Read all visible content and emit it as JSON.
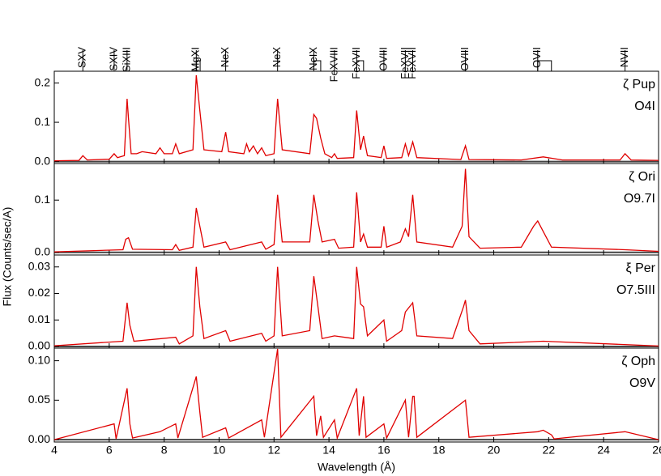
{
  "line_ids": [
    {
      "label": "SXV",
      "wavelength": 5.04
    },
    {
      "label": "SXIV",
      "wavelength": 6.18
    },
    {
      "label": "SiXIII",
      "wavelength": 6.65
    },
    {
      "label": "MgXI",
      "wavelength": 9.17,
      "range": [
        9.17,
        9.31
      ]
    },
    {
      "label": "NeX",
      "wavelength": 10.24
    },
    {
      "label": "NeX",
      "wavelength": 12.13
    },
    {
      "label": "NeIX",
      "wavelength": 13.45,
      "range": [
        13.45,
        13.7
      ]
    },
    {
      "label": "FeXVIII",
      "wavelength": 14.2
    },
    {
      "label": "FeXVII",
      "wavelength": 15.01,
      "range": [
        15.01,
        15.26
      ]
    },
    {
      "label": "OVIII",
      "wavelength": 16.0
    },
    {
      "label": "FeXVII",
      "wavelength": 16.78
    },
    {
      "label": "FeXVII",
      "wavelength": 17.05
    },
    {
      "label": "OVIII",
      "wavelength": 18.97
    },
    {
      "label": "OVII",
      "wavelength": 21.6,
      "range": [
        21.6,
        22.1
      ]
    },
    {
      "label": "NVII",
      "wavelength": 24.78
    }
  ],
  "chart_data": [
    {
      "type": "line",
      "ylabel": "Flux (Counts/sec/A)",
      "spectral_type": "O4I",
      "x": [
        4.0,
        4.9,
        5.04,
        5.2,
        6.0,
        6.18,
        6.3,
        6.55,
        6.65,
        6.7,
        6.8,
        7.0,
        7.2,
        7.7,
        7.85,
        8.0,
        8.3,
        8.42,
        8.55,
        9.05,
        9.17,
        9.3,
        9.45,
        10.1,
        10.24,
        10.35,
        10.9,
        11.0,
        11.1,
        11.25,
        11.4,
        11.55,
        11.7,
        12.0,
        12.13,
        12.3,
        13.3,
        13.45,
        13.55,
        13.7,
        13.85,
        14.1,
        14.2,
        14.3,
        14.9,
        15.01,
        15.15,
        15.26,
        15.4,
        15.9,
        16.0,
        16.1,
        16.65,
        16.78,
        16.9,
        17.05,
        17.2,
        18.8,
        18.97,
        19.1,
        21.0,
        21.8,
        22.5,
        24.6,
        24.78,
        25.0,
        26.0
      ],
      "series": [
        {
          "name": "ζ Pup",
          "color": "#e00000",
          "values": [
            0.002,
            0.003,
            0.015,
            0.004,
            0.006,
            0.02,
            0.01,
            0.015,
            0.16,
            0.11,
            0.02,
            0.02,
            0.025,
            0.02,
            0.035,
            0.02,
            0.02,
            0.045,
            0.02,
            0.03,
            0.22,
            0.13,
            0.03,
            0.025,
            0.075,
            0.025,
            0.02,
            0.045,
            0.025,
            0.04,
            0.02,
            0.035,
            0.015,
            0.02,
            0.16,
            0.03,
            0.02,
            0.12,
            0.11,
            0.06,
            0.02,
            0.01,
            0.02,
            0.008,
            0.01,
            0.13,
            0.03,
            0.065,
            0.015,
            0.01,
            0.04,
            0.008,
            0.01,
            0.045,
            0.015,
            0.05,
            0.01,
            0.005,
            0.04,
            0.005,
            0.004,
            0.012,
            0.004,
            0.004,
            0.02,
            0.004,
            0.003
          ]
        }
      ],
      "ylim": [
        -0.005,
        0.23
      ],
      "yticks": [
        {
          "value": 0,
          "label": "0.0"
        },
        0.1,
        0.2
      ]
    },
    {
      "type": "line",
      "spectral_type": "O9.7I",
      "x": [
        4.0,
        6.5,
        6.6,
        6.7,
        6.85,
        8.3,
        8.42,
        8.55,
        9.05,
        9.17,
        9.3,
        9.45,
        10.24,
        10.4,
        11.55,
        11.7,
        12.0,
        12.13,
        12.3,
        13.3,
        13.45,
        13.6,
        13.75,
        14.2,
        14.35,
        14.9,
        15.01,
        15.15,
        15.26,
        15.4,
        15.9,
        16.0,
        16.1,
        16.6,
        16.78,
        16.9,
        17.05,
        17.2,
        18.5,
        18.85,
        18.97,
        19.1,
        19.5,
        21.0,
        21.45,
        21.6,
        21.8,
        22.1,
        24.78,
        26.0
      ],
      "series": [
        {
          "name": "ζ Ori",
          "color": "#e00000",
          "values": [
            0.001,
            0.005,
            0.025,
            0.028,
            0.006,
            0.005,
            0.015,
            0.004,
            0.01,
            0.085,
            0.05,
            0.01,
            0.02,
            0.005,
            0.02,
            0.006,
            0.015,
            0.11,
            0.02,
            0.02,
            0.11,
            0.06,
            0.02,
            0.025,
            0.008,
            0.01,
            0.115,
            0.02,
            0.035,
            0.01,
            0.01,
            0.05,
            0.01,
            0.02,
            0.045,
            0.03,
            0.11,
            0.02,
            0.01,
            0.05,
            0.16,
            0.03,
            0.008,
            0.01,
            0.05,
            0.06,
            0.04,
            0.01,
            0.005,
            0.002
          ]
        }
      ],
      "ylim": [
        -0.005,
        0.17
      ],
      "yticks": [
        {
          "value": 0,
          "label": "0.0"
        },
        0.1
      ]
    },
    {
      "type": "line",
      "spectral_type": "O7.5III",
      "x": [
        4.0,
        6.5,
        6.65,
        6.75,
        6.9,
        8.42,
        8.55,
        9.05,
        9.17,
        9.3,
        9.45,
        10.24,
        10.4,
        11.55,
        11.7,
        12.0,
        12.13,
        12.3,
        13.3,
        13.45,
        13.6,
        13.75,
        14.2,
        14.9,
        15.01,
        15.15,
        15.26,
        15.4,
        16.0,
        16.1,
        16.65,
        16.78,
        17.05,
        17.2,
        18.5,
        18.9,
        18.97,
        19.1,
        19.5,
        21.8,
        26.0
      ],
      "series": [
        {
          "name": "ξ Per",
          "color": "#e00000",
          "values": [
            0.0003,
            0.002,
            0.0165,
            0.008,
            0.002,
            0.0035,
            0.001,
            0.004,
            0.03,
            0.015,
            0.003,
            0.006,
            0.002,
            0.005,
            0.002,
            0.004,
            0.03,
            0.004,
            0.006,
            0.0265,
            0.015,
            0.003,
            0.004,
            0.003,
            0.03,
            0.016,
            0.015,
            0.004,
            0.01,
            0.002,
            0.006,
            0.013,
            0.0165,
            0.004,
            0.003,
            0.015,
            0.0175,
            0.006,
            0.001,
            0.002,
            0.0002
          ]
        }
      ],
      "ylim": [
        -0.0006,
        0.0345
      ],
      "yticks": [
        {
          "value": 0,
          "label": "0.00"
        },
        0.01,
        0.02,
        0.03
      ]
    },
    {
      "type": "line",
      "spectral_type": "O9V",
      "xlabel": "Wavelength (Å)",
      "x": [
        4.0,
        6.18,
        6.25,
        6.65,
        6.75,
        6.85,
        7.85,
        8.42,
        8.5,
        9.17,
        9.3,
        9.4,
        10.24,
        10.35,
        11.55,
        11.65,
        12.13,
        12.25,
        13.45,
        13.55,
        13.7,
        13.8,
        14.2,
        14.3,
        15.01,
        15.1,
        15.26,
        15.35,
        16.0,
        16.1,
        16.78,
        16.9,
        17.05,
        17.1,
        17.2,
        18.97,
        19.1,
        21.6,
        21.8,
        22.1,
        22.2,
        24.78,
        26.0
      ],
      "series": [
        {
          "name": "ζ Oph",
          "color": "#e00000",
          "values": [
            0.0,
            0.02,
            0.001,
            0.065,
            0.02,
            0.002,
            0.01,
            0.02,
            0.002,
            0.08,
            0.035,
            0.003,
            0.015,
            0.002,
            0.025,
            0.003,
            0.115,
            0.003,
            0.055,
            0.005,
            0.03,
            0.003,
            0.025,
            0.002,
            0.065,
            0.005,
            0.055,
            0.003,
            0.02,
            0.002,
            0.05,
            0.003,
            0.055,
            0.055,
            0.003,
            0.05,
            0.003,
            0.01,
            0.012,
            0.006,
            0.001,
            0.01,
            0.0
          ]
        }
      ],
      "ylim": [
        -0.003,
        0.116
      ],
      "yticks": [
        {
          "value": 0,
          "label": "0.00"
        },
        {
          "value": 0.05,
          "label": "0.05"
        },
        {
          "value": 0.1,
          "label": "0.10"
        }
      ],
      "xlim": [
        4,
        26
      ],
      "xticks": [
        4,
        6,
        8,
        10,
        12,
        14,
        16,
        18,
        20,
        22,
        24,
        26
      ]
    }
  ]
}
